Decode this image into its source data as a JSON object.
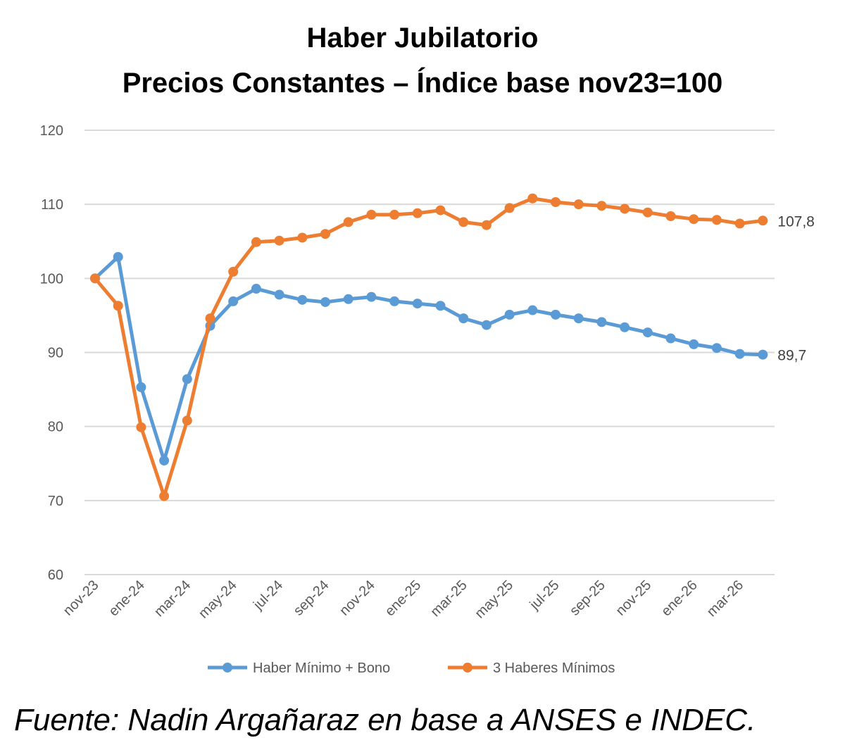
{
  "chart_data": {
    "type": "line",
    "title": "Haber Jubilatorio",
    "subtitle": "Precios Constantes – Índice base nov23=100",
    "xlabel": "",
    "ylabel": "",
    "ylim": [
      60,
      120
    ],
    "yticks": [
      "60",
      "70",
      "80",
      "90",
      "100",
      "110",
      "120"
    ],
    "grid": true,
    "legend": "bottom",
    "x": [
      "nov-23",
      "dic-23",
      "ene-24",
      "feb-24",
      "mar-24",
      "abr-24",
      "may-24",
      "jun-24",
      "jul-24",
      "ago-24",
      "sep-24",
      "oct-24",
      "nov-24",
      "dic-24",
      "ene-25",
      "feb-25",
      "mar-25",
      "abr-25",
      "may-25",
      "jun-25",
      "jul-25",
      "ago-25",
      "sep-25",
      "oct-25",
      "nov-25",
      "dic-25",
      "ene-26",
      "feb-26",
      "mar-26",
      "abr-26"
    ],
    "x_tick_labels": [
      "nov-23",
      "",
      "ene-24",
      "",
      "mar-24",
      "",
      "may-24",
      "",
      "jul-24",
      "",
      "sep-24",
      "",
      "nov-24",
      "",
      "ene-25",
      "",
      "mar-25",
      "",
      "may-25",
      "",
      "jul-25",
      "",
      "sep-25",
      "",
      "nov-25",
      "",
      "ene-26",
      "",
      "mar-26",
      ""
    ],
    "series": [
      {
        "name": "Haber Mínimo + Bono",
        "color": "#5b9bd5",
        "values": [
          100.0,
          102.9,
          85.3,
          75.4,
          86.4,
          93.6,
          96.9,
          98.6,
          97.8,
          97.1,
          96.8,
          97.2,
          97.5,
          96.9,
          96.6,
          96.3,
          94.6,
          93.7,
          95.1,
          95.7,
          95.1,
          94.6,
          94.1,
          93.4,
          92.7,
          91.9,
          91.1,
          90.6,
          89.8,
          89.7
        ],
        "end_label": "89,7"
      },
      {
        "name": "3 Haberes Mínimos",
        "color": "#ed7d31",
        "values": [
          100.0,
          96.3,
          79.9,
          70.6,
          80.8,
          94.6,
          100.9,
          104.9,
          105.1,
          105.5,
          106.0,
          107.6,
          108.6,
          108.6,
          108.8,
          109.2,
          107.6,
          107.2,
          109.5,
          110.8,
          110.3,
          110.0,
          109.8,
          109.4,
          108.9,
          108.4,
          108.0,
          107.9,
          107.4,
          107.8
        ],
        "end_label": "107,8"
      }
    ]
  },
  "source_text": "Fuente: Nadin Argañaraz en base a ANSES e INDEC."
}
